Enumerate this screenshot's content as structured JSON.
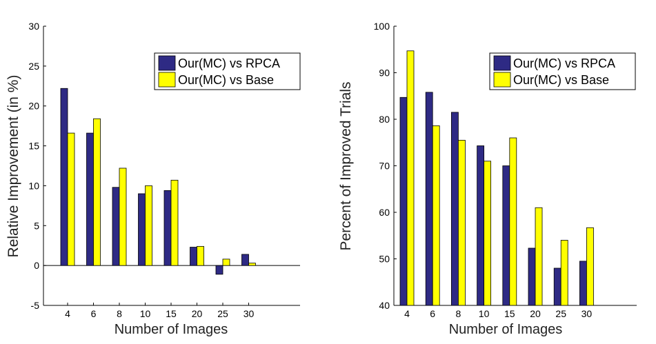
{
  "chart_data": [
    {
      "type": "bar",
      "categories": [
        "4",
        "6",
        "8",
        "10",
        "15",
        "20",
        "25",
        "30"
      ],
      "series": [
        {
          "name": "Our(MC) vs RPCA",
          "values": [
            22.2,
            16.6,
            9.8,
            9.0,
            9.4,
            2.3,
            -1.1,
            1.4
          ],
          "color": "#2e2a84"
        },
        {
          "name": "Our(MC) vs Base",
          "values": [
            16.6,
            18.4,
            12.2,
            10.0,
            10.7,
            2.4,
            0.8,
            0.3
          ],
          "color": "#ffff00"
        }
      ],
      "xlabel": "Number of Images",
      "ylabel": "Relative Improvement (in %)",
      "ylim": [
        -5,
        30
      ],
      "yticks": [
        "-5",
        "0",
        "5",
        "10",
        "15",
        "20",
        "25",
        "30"
      ],
      "legend_position": "top-right"
    },
    {
      "type": "bar",
      "categories": [
        "4",
        "6",
        "8",
        "10",
        "15",
        "20",
        "25",
        "30"
      ],
      "series": [
        {
          "name": "Our(MC) vs RPCA",
          "values": [
            84.7,
            85.8,
            81.5,
            74.3,
            70.0,
            52.3,
            48.0,
            49.5
          ],
          "color": "#2e2a84"
        },
        {
          "name": "Our(MC) vs Base",
          "values": [
            94.7,
            78.6,
            75.5,
            71.0,
            76.0,
            61.0,
            54.0,
            56.7
          ],
          "color": "#ffff00"
        }
      ],
      "xlabel": "Number of Images",
      "ylabel": "Percent of Improved Trials",
      "ylim": [
        40,
        100
      ],
      "yticks": [
        "40",
        "50",
        "60",
        "70",
        "80",
        "90",
        "100"
      ],
      "legend_position": "top-right"
    }
  ]
}
